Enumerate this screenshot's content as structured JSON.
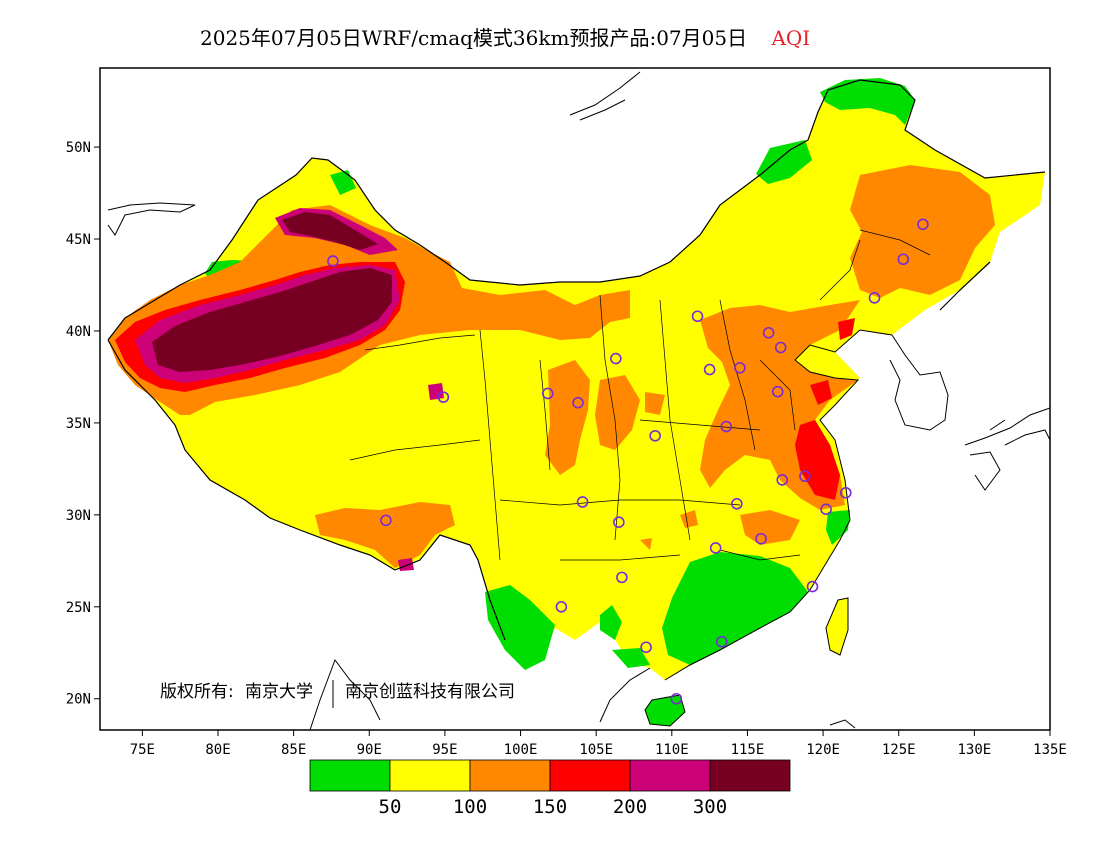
{
  "title": {
    "main": "2025年07月05日WRF/cmaq模式36km预报产品:07月05日",
    "variable": "AQI"
  },
  "axes": {
    "lon_ticks": [
      "75E",
      "80E",
      "85E",
      "90E",
      "95E",
      "100E",
      "105E",
      "110E",
      "115E",
      "120E",
      "125E",
      "130E",
      "135E"
    ],
    "lat_ticks": [
      "50N",
      "45N",
      "40N",
      "35N",
      "30N",
      "25N",
      "20N"
    ]
  },
  "copyright": {
    "prefix": "版权所有:",
    "org1": "南京大学",
    "org2": "南京创蓝科技有限公司"
  },
  "legend": {
    "colors": [
      "#00dd00",
      "#ffff00",
      "#ff8800",
      "#ff0000",
      "#cc0077",
      "#770022"
    ],
    "labels": [
      "50",
      "100",
      "150",
      "200",
      "300"
    ]
  },
  "stations": [
    {
      "lon": 87.6,
      "lat": 43.8
    },
    {
      "lon": 91.1,
      "lat": 29.7
    },
    {
      "lon": 94.9,
      "lat": 36.4
    },
    {
      "lon": 101.8,
      "lat": 36.6
    },
    {
      "lon": 103.8,
      "lat": 36.1
    },
    {
      "lon": 106.3,
      "lat": 38.5
    },
    {
      "lon": 104.1,
      "lat": 30.7
    },
    {
      "lon": 106.5,
      "lat": 29.6
    },
    {
      "lon": 106.7,
      "lat": 26.6
    },
    {
      "lon": 102.7,
      "lat": 25.0
    },
    {
      "lon": 108.9,
      "lat": 34.3
    },
    {
      "lon": 112.5,
      "lat": 37.9
    },
    {
      "lon": 111.7,
      "lat": 40.8
    },
    {
      "lon": 114.5,
      "lat": 38.0
    },
    {
      "lon": 116.4,
      "lat": 39.9
    },
    {
      "lon": 117.2,
      "lat": 39.1
    },
    {
      "lon": 117.0,
      "lat": 36.7
    },
    {
      "lon": 113.6,
      "lat": 34.8
    },
    {
      "lon": 114.3,
      "lat": 30.6
    },
    {
      "lon": 112.9,
      "lat": 28.2
    },
    {
      "lon": 115.9,
      "lat": 28.7
    },
    {
      "lon": 117.3,
      "lat": 31.9
    },
    {
      "lon": 118.8,
      "lat": 32.1
    },
    {
      "lon": 121.5,
      "lat": 31.2
    },
    {
      "lon": 120.2,
      "lat": 30.3
    },
    {
      "lon": 119.3,
      "lat": 26.1
    },
    {
      "lon": 113.3,
      "lat": 23.1
    },
    {
      "lon": 108.3,
      "lat": 22.8
    },
    {
      "lon": 110.3,
      "lat": 20.0
    },
    {
      "lon": 123.4,
      "lat": 41.8
    },
    {
      "lon": 125.3,
      "lat": 43.9
    },
    {
      "lon": 126.6,
      "lat": 45.8
    }
  ]
}
